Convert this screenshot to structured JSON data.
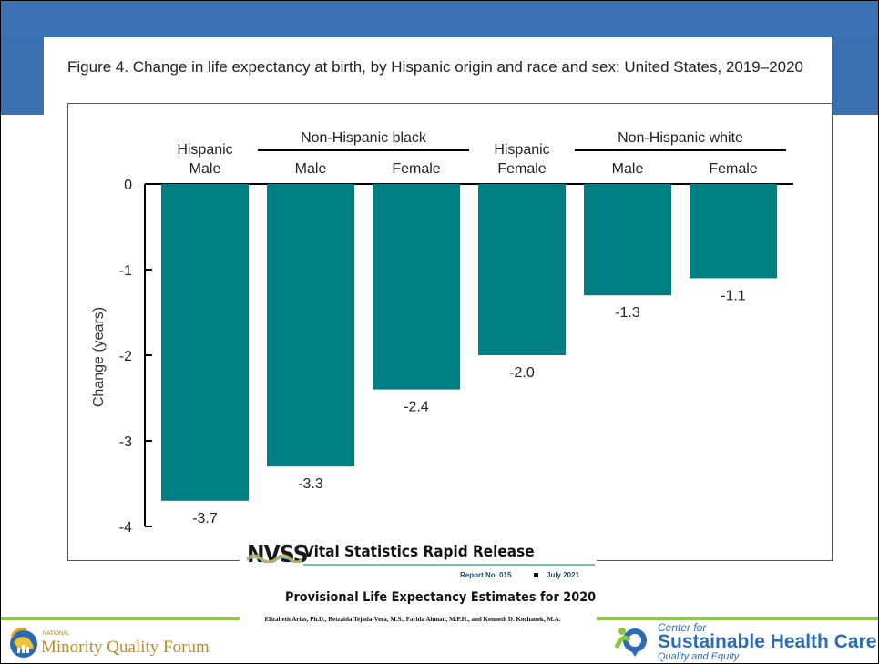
{
  "slide": {
    "figure_title": "Figure 4. Change in life expectancy at birth, by Hispanic origin and race and sex: United States, 2019–2020"
  },
  "colors": {
    "bar": "#007e84",
    "slide_blue": "#3a6fb2",
    "accent_green": "#8dc63f",
    "mqf_gold": "#c28a1a",
    "cshc_blue": "#2d6bb3"
  },
  "chart_data": {
    "type": "bar",
    "title": "",
    "ylabel": "Change (years)",
    "xlabel": "",
    "ylim": [
      -4,
      0
    ],
    "yticks": [
      0,
      -1,
      -2,
      -3,
      -4
    ],
    "grid": false,
    "group_headers": [
      {
        "label": "Non-Hispanic black",
        "span": [
          1,
          2
        ]
      },
      {
        "label": "Non-Hispanic white",
        "span": [
          4,
          5
        ]
      }
    ],
    "categories": [
      {
        "line1": "Hispanic",
        "line2": "Male"
      },
      {
        "line1": "",
        "line2": "Male"
      },
      {
        "line1": "",
        "line2": "Female"
      },
      {
        "line1": "Hispanic",
        "line2": "Female"
      },
      {
        "line1": "",
        "line2": "Male"
      },
      {
        "line1": "",
        "line2": "Female"
      }
    ],
    "values": [
      -3.7,
      -3.3,
      -2.4,
      -2.0,
      -1.3,
      -1.1
    ],
    "value_labels": [
      "-3.7",
      "-3.3",
      "-2.4",
      "-2.0",
      "-1.3",
      "-1.1"
    ]
  },
  "nvss": {
    "logo": "NVSS",
    "series": "Vital Statistics Rapid Release",
    "report_no": "Report No. 015",
    "date": "July 2021",
    "report_title": "Provisional Life Expectancy Estimates for 2020",
    "authors": "Elizabeth Arias, Ph.D., Betzaida Tejada-Vera, M.S., Farida Ahmad, M.P.H., and Kenneth D. Kochanek, M.A."
  },
  "footer": {
    "mqf_national": "NATIONAL",
    "mqf_name": "Minority Quality Forum",
    "cshc_line1": "Center for",
    "cshc_line2": "Sustainable Health Care",
    "cshc_line3": "Quality and Equity"
  }
}
